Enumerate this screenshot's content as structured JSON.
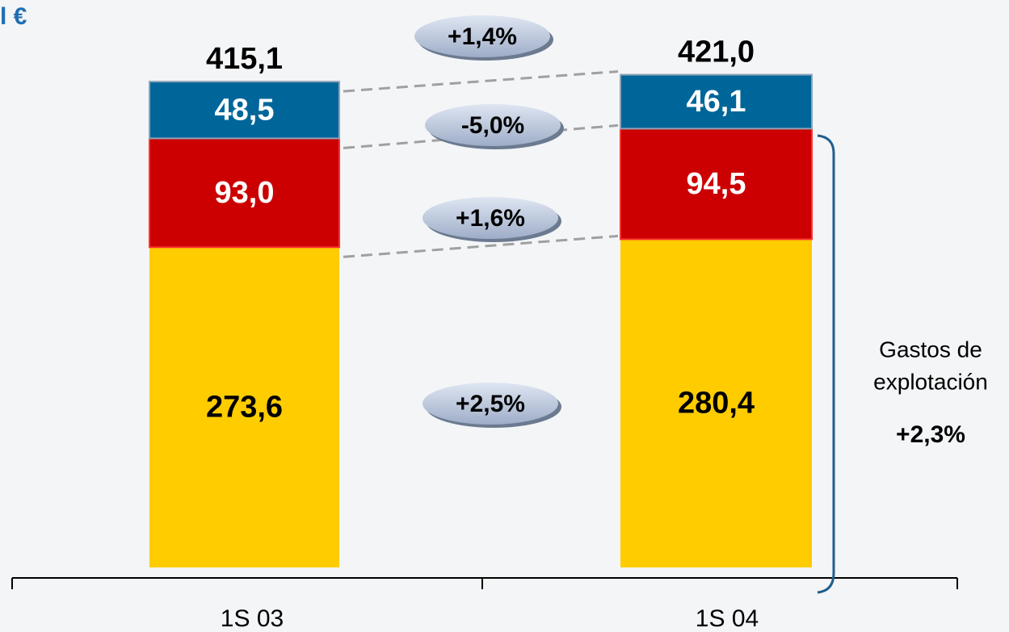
{
  "chart_data": {
    "type": "stacked_bar",
    "title": "l €",
    "categories": [
      "1S 03",
      "1S 04"
    ],
    "series": [
      {
        "color": "#ffcc00",
        "values": [
          273.6,
          280.4
        ],
        "value_labels": [
          "273,6",
          "280,4"
        ],
        "label_color": "#000000"
      },
      {
        "color": "#cc0000",
        "values": [
          93.0,
          94.5
        ],
        "value_labels": [
          "93,0",
          "94,5"
        ],
        "label_color": "#ffffff"
      },
      {
        "color": "#00669a",
        "values": [
          48.5,
          46.1
        ],
        "value_labels": [
          "48,5",
          "46,1"
        ],
        "label_color": "#ffffff"
      }
    ],
    "totals": {
      "values": [
        415.1,
        421.0
      ],
      "value_labels": [
        "415,1",
        "421,0"
      ]
    },
    "total_change": "+1,4%",
    "segment_changes": [
      "+2,5%",
      "+1,6%",
      "-5,0%"
    ],
    "bracket_label": [
      "Gastos de",
      "explotación"
    ],
    "bracket_change": "+2,3%",
    "ylim": [
      0,
      430
    ]
  }
}
